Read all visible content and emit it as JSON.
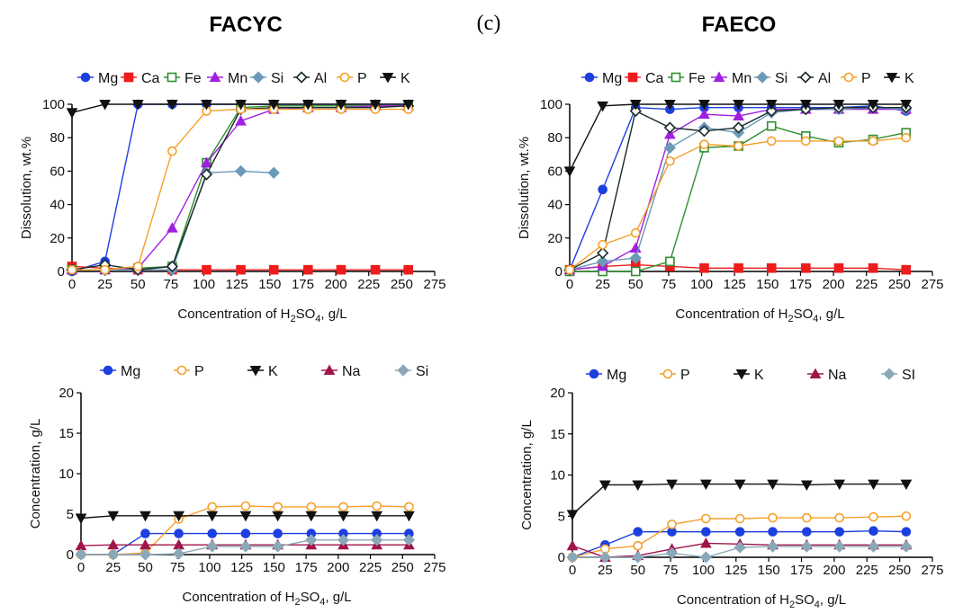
{
  "figure": {
    "panel_label": "(c)",
    "titles": [
      "FACYC",
      "FAECO"
    ]
  },
  "chart_data": [
    {
      "type": "line",
      "title": "FACYC",
      "xlabel": "Concentration of H2SO4, g/L",
      "ylabel": "Dissolution, wt.%",
      "xlim": [
        0,
        275
      ],
      "ylim": [
        0,
        100
      ],
      "xticks": [
        0,
        25,
        50,
        75,
        100,
        125,
        150,
        175,
        200,
        225,
        250,
        275
      ],
      "yticks": [
        0,
        20,
        40,
        60,
        80,
        100
      ],
      "legend_position": "top",
      "x": [
        0,
        25,
        50,
        76,
        102,
        128,
        153,
        179,
        204,
        230,
        255
      ],
      "series": [
        {
          "name": "Mg",
          "color": "#1c3fe0",
          "marker": "circle-filled",
          "values": [
            0,
            6,
            100,
            100,
            100,
            100,
            100,
            100,
            100,
            100,
            100
          ]
        },
        {
          "name": "Ca",
          "color": "#ee1c1c",
          "marker": "square-filled",
          "values": [
            3,
            2,
            1,
            1,
            1,
            1,
            1,
            1,
            1,
            1,
            1
          ]
        },
        {
          "name": "Fe",
          "color": "#2f8f2f",
          "marker": "square-open",
          "values": [
            1,
            1,
            2,
            3,
            65,
            98,
            99,
            99,
            99,
            99,
            99
          ]
        },
        {
          "name": "Mn",
          "color": "#a020e0",
          "marker": "triangle-filled",
          "values": [
            1,
            1,
            2,
            26,
            65,
            90,
            97,
            98,
            98,
            99,
            99
          ]
        },
        {
          "name": "Si",
          "color": "#6b9ab8",
          "marker": "diamond-filled",
          "values": [
            1,
            1,
            1,
            1,
            59,
            60,
            59,
            null,
            null,
            null,
            null
          ]
        },
        {
          "name": "Al",
          "color": "#1a2a2a",
          "marker": "diamond-open",
          "values": [
            1,
            4,
            1,
            3,
            58,
            97,
            98,
            98,
            98,
            98,
            99
          ]
        },
        {
          "name": "P",
          "color": "#f5a02a",
          "marker": "circle-open",
          "values": [
            1,
            1,
            3,
            72,
            96,
            97,
            97,
            97,
            97,
            97,
            97
          ]
        },
        {
          "name": "K",
          "color": "#111111",
          "marker": "triangle-down",
          "values": [
            95,
            100,
            100,
            100,
            100,
            100,
            100,
            100,
            100,
            100,
            100
          ]
        }
      ]
    },
    {
      "type": "line",
      "title": "FAECO",
      "xlabel": "Concentration of H2SO4, g/L",
      "ylabel": "Dissolution, wt.%",
      "xlim": [
        0,
        275
      ],
      "ylim": [
        0,
        100
      ],
      "xticks": [
        0,
        25,
        50,
        75,
        100,
        125,
        150,
        175,
        200,
        225,
        250,
        275
      ],
      "yticks": [
        0,
        20,
        40,
        60,
        80,
        100
      ],
      "legend_position": "top",
      "x": [
        0,
        25,
        50,
        76,
        102,
        128,
        153,
        179,
        204,
        230,
        255
      ],
      "series": [
        {
          "name": "Mg",
          "color": "#1c3fe0",
          "marker": "circle-filled",
          "values": [
            1,
            49,
            98,
            97,
            98,
            98,
            98,
            98,
            98,
            99,
            96
          ]
        },
        {
          "name": "Ca",
          "color": "#ee1c1c",
          "marker": "square-filled",
          "values": [
            1,
            3,
            4,
            3,
            2,
            2,
            2,
            2,
            2,
            2,
            1
          ]
        },
        {
          "name": "Fe",
          "color": "#2f8f2f",
          "marker": "square-open",
          "values": [
            0,
            0,
            0,
            6,
            74,
            75,
            87,
            81,
            77,
            79,
            83
          ]
        },
        {
          "name": "Mn",
          "color": "#a020e0",
          "marker": "triangle-filled",
          "values": [
            1,
            3,
            14,
            82,
            94,
            93,
            97,
            97,
            97,
            97,
            97
          ]
        },
        {
          "name": "Si",
          "color": "#6b9ab8",
          "marker": "diamond-filled",
          "values": [
            1,
            6,
            8,
            74,
            86,
            83,
            95,
            97,
            97,
            98,
            97
          ]
        },
        {
          "name": "Al",
          "color": "#1a2a2a",
          "marker": "diamond-open",
          "values": [
            1,
            11,
            96,
            86,
            84,
            86,
            96,
            97,
            98,
            98,
            98
          ]
        },
        {
          "name": "P",
          "color": "#f5a02a",
          "marker": "circle-open",
          "values": [
            1,
            16,
            23,
            66,
            76,
            75,
            78,
            78,
            78,
            78,
            80
          ]
        },
        {
          "name": "K",
          "color": "#111111",
          "marker": "triangle-down",
          "values": [
            60,
            99,
            100,
            100,
            100,
            100,
            100,
            100,
            100,
            100,
            100
          ]
        }
      ]
    },
    {
      "type": "line",
      "title": "",
      "xlabel": "Concentration of H2SO4, g/L",
      "ylabel": "Concentration, g/L",
      "xlim": [
        0,
        275
      ],
      "ylim": [
        0,
        20
      ],
      "xticks": [
        0,
        25,
        50,
        75,
        100,
        125,
        150,
        175,
        200,
        225,
        250,
        275
      ],
      "yticks": [
        0,
        5,
        10,
        15,
        20
      ],
      "legend_position": "top",
      "x": [
        0,
        25,
        50,
        76,
        102,
        128,
        153,
        179,
        204,
        230,
        255
      ],
      "series": [
        {
          "name": "Mg",
          "color": "#1c3fe0",
          "marker": "circle-filled",
          "values": [
            0,
            0,
            2.6,
            2.6,
            2.6,
            2.6,
            2.6,
            2.6,
            2.6,
            2.6,
            2.6
          ]
        },
        {
          "name": "P",
          "color": "#f5a02a",
          "marker": "circle-open",
          "values": [
            0,
            0,
            0.2,
            4.4,
            5.9,
            6.0,
            5.9,
            5.9,
            5.9,
            6.0,
            5.9
          ]
        },
        {
          "name": "K",
          "color": "#111111",
          "marker": "triangle-down",
          "values": [
            4.5,
            4.8,
            4.8,
            4.8,
            4.8,
            4.8,
            4.8,
            4.8,
            4.8,
            4.8,
            4.8
          ]
        },
        {
          "name": "Na",
          "color": "#a0154a",
          "marker": "triangle-filled",
          "values": [
            1.1,
            1.2,
            1.2,
            1.2,
            1.2,
            1.2,
            1.2,
            1.2,
            1.2,
            1.2,
            1.2
          ]
        },
        {
          "name": "Si",
          "color": "#8aa8b8",
          "marker": "diamond-filled",
          "values": [
            0,
            0,
            0,
            0.1,
            1.0,
            1.0,
            1.0,
            1.8,
            1.8,
            1.8,
            1.8
          ]
        }
      ]
    },
    {
      "type": "line",
      "title": "",
      "xlabel": "Concentration of H2SO4, g/L",
      "ylabel": "Concentration, g/L",
      "xlim": [
        0,
        275
      ],
      "ylim": [
        0,
        20
      ],
      "xticks": [
        0,
        25,
        50,
        75,
        100,
        125,
        150,
        175,
        200,
        225,
        250,
        275
      ],
      "yticks": [
        0,
        5,
        10,
        15,
        20
      ],
      "legend_position": "top",
      "x": [
        0,
        25,
        50,
        76,
        102,
        128,
        153,
        179,
        204,
        230,
        255
      ],
      "series": [
        {
          "name": "Mg",
          "color": "#1c3fe0",
          "marker": "circle-filled",
          "values": [
            0,
            1.5,
            3.1,
            3.1,
            3.1,
            3.1,
            3.1,
            3.1,
            3.1,
            3.2,
            3.1
          ]
        },
        {
          "name": "P",
          "color": "#f5a02a",
          "marker": "circle-open",
          "values": [
            0,
            1.0,
            1.4,
            4.0,
            4.7,
            4.7,
            4.8,
            4.8,
            4.8,
            4.9,
            5.0
          ]
        },
        {
          "name": "K",
          "color": "#111111",
          "marker": "triangle-down",
          "values": [
            5.2,
            8.8,
            8.8,
            8.9,
            8.9,
            8.9,
            8.9,
            8.8,
            8.9,
            8.9,
            8.9
          ]
        },
        {
          "name": "Na",
          "color": "#a0154a",
          "marker": "triangle-filled",
          "values": [
            1.4,
            0,
            0.2,
            1.0,
            1.7,
            1.6,
            1.5,
            1.5,
            1.5,
            1.5,
            1.5
          ]
        },
        {
          "name": "SI",
          "color": "#8aa8b8",
          "marker": "diamond-filled",
          "values": [
            0,
            0,
            0,
            0.5,
            0,
            1.2,
            1.3,
            1.3,
            1.3,
            1.3,
            1.3
          ]
        }
      ]
    }
  ]
}
